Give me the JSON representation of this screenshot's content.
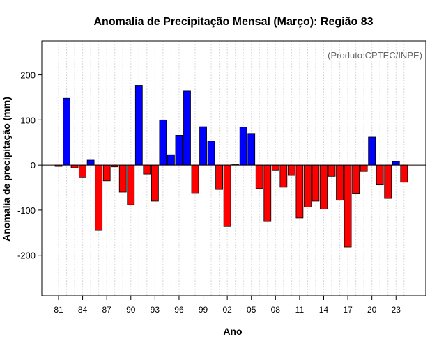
{
  "chart_data": {
    "type": "bar",
    "title": "Anomalia de Precipitação Mensal (Março): Região 83",
    "xlabel": "Ano",
    "ylabel": "Anomalia de precipitação (mm)",
    "annotation": "(Produto:CPTEC/INPE)",
    "ylim": [
      -290,
      275
    ],
    "yticks": [
      -200,
      -100,
      0,
      100,
      200
    ],
    "xtick_labels": [
      "81",
      "84",
      "87",
      "90",
      "93",
      "96",
      "99",
      "02",
      "05",
      "08",
      "11",
      "14",
      "17",
      "20",
      "23"
    ],
    "xtick_every": 3,
    "positive_color": "#0000ff",
    "negative_color": "#ff0000",
    "years": [
      "1981",
      "1982",
      "1983",
      "1984",
      "1985",
      "1986",
      "1987",
      "1988",
      "1989",
      "1990",
      "1991",
      "1992",
      "1993",
      "1994",
      "1995",
      "1996",
      "1997",
      "1998",
      "1999",
      "2000",
      "2001",
      "2002",
      "2003",
      "2004",
      "2005",
      "2006",
      "2007",
      "2008",
      "2009",
      "2010",
      "2011",
      "2012",
      "2013",
      "2014",
      "2015",
      "2016",
      "2017",
      "2018",
      "2019",
      "2020",
      "2021",
      "2022",
      "2023",
      "2024"
    ],
    "values": [
      -3,
      148,
      -6,
      -28,
      11,
      -145,
      -35,
      -4,
      -60,
      -88,
      177,
      -20,
      -80,
      100,
      23,
      66,
      164,
      -63,
      85,
      53,
      -54,
      -136,
      1,
      84,
      70,
      -52,
      -125,
      -11,
      -49,
      -23,
      -117,
      -93,
      -80,
      -98,
      -25,
      -78,
      -182,
      -64,
      -14,
      62,
      -44,
      -74,
      8,
      -38
    ],
    "grid": true
  }
}
